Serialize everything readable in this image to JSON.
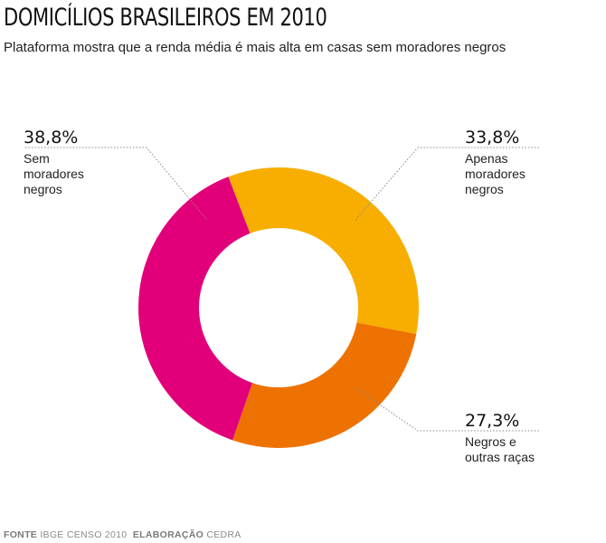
{
  "header": {
    "title": "DOMICÍLIOS BRASILEIROS EM 2010",
    "subtitle": "Plataforma mostra que a renda média é mais alta em casas sem moradores negros"
  },
  "footer": {
    "source_key": "FONTE",
    "source_value": "IBGE CENSO 2010",
    "credit_key": "ELABORAÇÃO",
    "credit_value": "CEDRA"
  },
  "chart_data": {
    "type": "pie",
    "donut": true,
    "legend": "none",
    "slices": [
      {
        "percent_label": "33,8%",
        "value": 33.8,
        "label_lines": [
          "Apenas",
          "moradores",
          "negros"
        ],
        "color": "#F7AE00"
      },
      {
        "percent_label": "27,3%",
        "value": 27.3,
        "label_lines": [
          "Negros e",
          "outras raças"
        ],
        "color": "#EE7202"
      },
      {
        "percent_label": "38,8%",
        "value": 38.8,
        "label_lines": [
          "Sem",
          "moradores",
          "negros"
        ],
        "color": "#E2007A"
      }
    ]
  }
}
